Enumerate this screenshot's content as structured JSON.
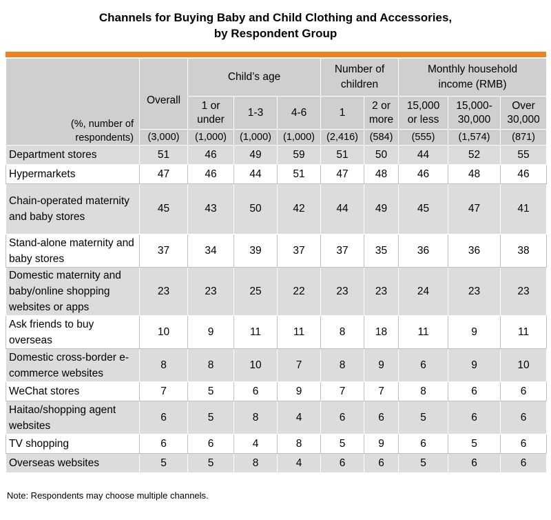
{
  "title_line1": "Channels for Buying Baby and Child Clothing and Accessories,",
  "title_line2": "by Respondent Group",
  "corner_label_line1": "(%, number of",
  "corner_label_line2": "respondents)",
  "groups": {
    "overall": "Overall",
    "childs_age": "Child’s age",
    "number_of_children_line1": "Number of",
    "number_of_children_line2": "children",
    "income_line1": "Monthly household",
    "income_line2": "income (RMB)"
  },
  "subheaders": [
    {
      "line1": "1 or",
      "line2": "under"
    },
    {
      "line1": "1-3",
      "line2": ""
    },
    {
      "line1": "4-6",
      "line2": ""
    },
    {
      "line1": "1",
      "line2": ""
    },
    {
      "line1": "2 or",
      "line2": "more"
    },
    {
      "line1": "15,000",
      "line2": "or less"
    },
    {
      "line1": "15,000-",
      "line2": "30,000"
    },
    {
      "line1": "Over",
      "line2": "30,000"
    }
  ],
  "sample_sizes": [
    "(3,000)",
    "(1,000)",
    "(1,000)",
    "(1,000)",
    "(2,416)",
    "(584)",
    "(555)",
    "(1,574)",
    "(871)"
  ],
  "chart_data": {
    "type": "table",
    "title": "Channels for Buying Baby and Child Clothing and Accessories, by Respondent Group",
    "columns": [
      "Overall",
      "1 or under",
      "1-3",
      "4-6",
      "1",
      "2 or more",
      "15,000 or less",
      "15,000-30,000",
      "Over 30,000"
    ],
    "rows": [
      {
        "label": "Department stores",
        "values": [
          51,
          46,
          49,
          59,
          51,
          50,
          44,
          52,
          55
        ]
      },
      {
        "label": "Hypermarkets",
        "values": [
          47,
          46,
          44,
          51,
          47,
          48,
          46,
          48,
          46
        ]
      },
      {
        "label": "Chain-operated maternity and baby stores",
        "values": [
          45,
          43,
          50,
          42,
          44,
          49,
          45,
          47,
          41
        ]
      },
      {
        "label": "Stand-alone maternity and baby stores",
        "values": [
          37,
          34,
          39,
          37,
          37,
          35,
          36,
          36,
          38
        ]
      },
      {
        "label": "Domestic maternity and baby/online shopping websites or apps",
        "values": [
          23,
          23,
          25,
          22,
          23,
          23,
          24,
          23,
          23
        ]
      },
      {
        "label": "Ask friends to buy overseas",
        "values": [
          10,
          9,
          11,
          11,
          8,
          18,
          11,
          9,
          11
        ]
      },
      {
        "label": "Domestic cross-border e-commerce websites",
        "values": [
          8,
          8,
          10,
          7,
          8,
          9,
          6,
          9,
          10
        ]
      },
      {
        "label": "WeChat stores",
        "values": [
          7,
          5,
          6,
          9,
          7,
          7,
          8,
          6,
          6
        ]
      },
      {
        "label": "Haitao/shopping agent websites",
        "values": [
          6,
          5,
          8,
          4,
          6,
          6,
          5,
          6,
          6
        ]
      },
      {
        "label": "TV shopping",
        "values": [
          6,
          6,
          4,
          8,
          5,
          9,
          6,
          5,
          6
        ]
      },
      {
        "label": "Overseas websites",
        "values": [
          5,
          5,
          8,
          4,
          6,
          6,
          5,
          6,
          6
        ]
      }
    ]
  },
  "note": "Note: Respondents may choose multiple channels.",
  "colors": {
    "accent_bar": "#f07f22",
    "header_bg": "#cfcfcf",
    "shaded_row_bg": "#dcdcdc"
  }
}
